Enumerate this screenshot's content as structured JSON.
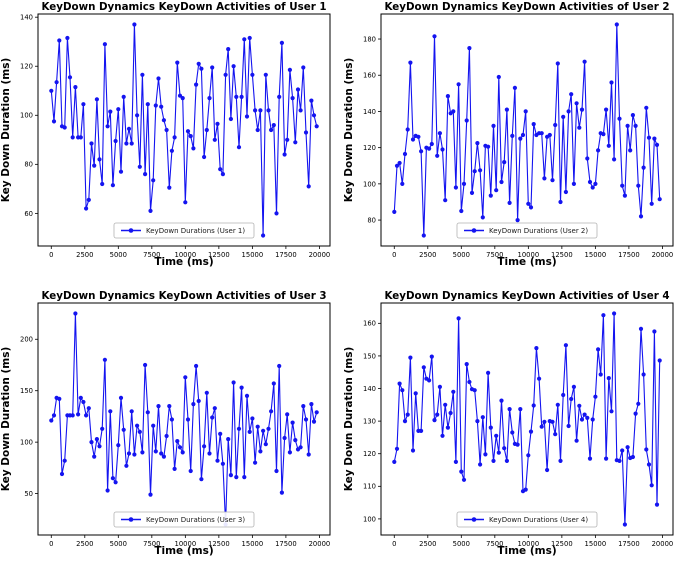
{
  "page": {
    "background_color": "#ffffff",
    "accent_color": "#1414f0"
  },
  "chart_data": [
    {
      "type": "line",
      "title": "KeyDown Dynamics KeyDown Activities of User 1",
      "xlabel": "Time (ms)",
      "ylabel": "Key Down Duration (ms)",
      "legend_label": "KeyDown Durations (User 1)",
      "legend_position": "lower center",
      "line_color": "#1414f0",
      "marker": "circle",
      "grid": false,
      "x_step_ms": 200,
      "xlim": [
        -990,
        20790
      ],
      "xticks": [
        0,
        2500,
        5000,
        7500,
        10000,
        12500,
        15000,
        17500,
        20000
      ],
      "yticks": [
        60,
        80,
        100,
        120,
        140
      ],
      "values": [
        110,
        97.5,
        113.5,
        130.5,
        95.5,
        95,
        131.5,
        115.5,
        91,
        111.5,
        91,
        91,
        104.5,
        62,
        65.5,
        88.5,
        79.5,
        106.5,
        82,
        72,
        129,
        95.5,
        101.5,
        71.5,
        89.5,
        102.5,
        77,
        107.5,
        88.5,
        94.5,
        88.5,
        137,
        100,
        79,
        116.5,
        76,
        104.5,
        61,
        73.5,
        104,
        115,
        103.5,
        98,
        94,
        70.5,
        85.5,
        91,
        121.5,
        108,
        107,
        64.5,
        93.5,
        91.5,
        86.5,
        112.5,
        121,
        119,
        83,
        94,
        107,
        119.5,
        90,
        96.5,
        78,
        76,
        116.5,
        127,
        98.5,
        120,
        107.5,
        87,
        107.5,
        131,
        99.5,
        131.5,
        116.5,
        102,
        94,
        102,
        51,
        116.5,
        102,
        94,
        96,
        60,
        107.5,
        129.5,
        84,
        90,
        118.5,
        107,
        89,
        110.5,
        102,
        119.5,
        93,
        71,
        106,
        100,
        95.5
      ]
    },
    {
      "type": "line",
      "title": "KeyDown Dynamics KeyDown Activities of User 2",
      "xlabel": "Time (ms)",
      "ylabel": "Key Down Duration (ms)",
      "legend_label": "KeyDown Durations (User 2)",
      "legend_position": "lower center",
      "line_color": "#1414f0",
      "marker": "circle",
      "grid": false,
      "x_step_ms": 200,
      "xlim": [
        -990,
        20790
      ],
      "xticks": [
        0,
        2500,
        5000,
        7500,
        10000,
        12500,
        15000,
        17500,
        20000
      ],
      "yticks": [
        80,
        100,
        120,
        140,
        160,
        180
      ],
      "values": [
        84.5,
        110,
        111.5,
        100,
        116.5,
        130,
        167,
        124.5,
        126.5,
        126,
        118,
        71.5,
        120,
        119.5,
        122,
        181.5,
        115.5,
        128,
        119,
        91,
        148.5,
        139,
        140,
        98,
        155,
        85,
        100,
        135,
        175,
        95,
        107,
        122.5,
        107.5,
        81.5,
        121,
        120.5,
        93.5,
        132,
        96.5,
        159,
        101,
        112,
        141,
        89.5,
        126.5,
        153,
        80,
        125,
        127,
        140,
        89,
        87,
        133,
        127,
        128,
        128,
        103,
        126,
        127,
        102,
        132.5,
        166.5,
        90,
        137,
        95.5,
        140,
        149.5,
        100,
        144.5,
        131,
        141,
        167.5,
        114,
        101,
        98,
        100,
        118.5,
        128,
        127.5,
        141,
        121,
        156,
        113.5,
        188,
        136,
        99,
        93.5,
        132,
        118.5,
        138,
        132,
        99,
        82,
        109,
        142,
        125.5,
        89,
        125,
        121.5,
        91.5
      ]
    },
    {
      "type": "line",
      "title": "KeyDown Dynamics KeyDown Activities of User 3",
      "xlabel": "Time (ms)",
      "ylabel": "Key Down Duration (ms)",
      "legend_label": "KeyDown Durations (User 3)",
      "legend_position": "lower center",
      "line_color": "#1414f0",
      "marker": "circle",
      "grid": false,
      "x_step_ms": 200,
      "xlim": [
        -990,
        20790
      ],
      "xticks": [
        0,
        2500,
        5000,
        7500,
        10000,
        12500,
        15000,
        17500,
        20000
      ],
      "yticks": [
        50,
        100,
        150,
        200
      ],
      "values": [
        121,
        126,
        143,
        142,
        69,
        82,
        126,
        126,
        126,
        225,
        127,
        143,
        139,
        126,
        133,
        100,
        86,
        103,
        96,
        113,
        180,
        53,
        130,
        65,
        61,
        97,
        143,
        112,
        77,
        89,
        130,
        88,
        116,
        110,
        90,
        175,
        129,
        49,
        116,
        91,
        135,
        89,
        86,
        106,
        135,
        122,
        74,
        101,
        95,
        90,
        163,
        122,
        72,
        137,
        174,
        140,
        64,
        96,
        148,
        89,
        124,
        133,
        82,
        108,
        79,
        20,
        103,
        68,
        158,
        66,
        113,
        153,
        66,
        145,
        110,
        123,
        80,
        115,
        91,
        111,
        98,
        113,
        130,
        157,
        72,
        174,
        51,
        104,
        127,
        90,
        119,
        102,
        93,
        95,
        135,
        122,
        88,
        137,
        120,
        129
      ]
    },
    {
      "type": "line",
      "title": "KeyDown Dynamics KeyDown Activities of User 4",
      "xlabel": "Time (ms)",
      "ylabel": "Key Down Duration (ms)",
      "legend_label": "KeyDown Durations (User 4)",
      "legend_position": "lower center",
      "line_color": "#1414f0",
      "marker": "circle",
      "grid": false,
      "x_step_ms": 200,
      "xlim": [
        -990,
        20790
      ],
      "xticks": [
        0,
        2500,
        5000,
        7500,
        10000,
        12500,
        15000,
        17500,
        20000
      ],
      "yticks": [
        100,
        110,
        120,
        130,
        140,
        150,
        160
      ],
      "values": [
        117.5,
        121.5,
        141.5,
        139.5,
        130,
        132,
        149.5,
        121,
        138.5,
        127,
        127,
        146.5,
        143,
        142.5,
        149.8,
        130.3,
        132,
        140.5,
        125.5,
        135,
        128,
        132.5,
        139,
        117.5,
        161.5,
        114.5,
        112,
        147.5,
        142,
        139.8,
        139.5,
        130,
        116.7,
        131.2,
        119.8,
        144.8,
        128,
        117.8,
        125.5,
        120.3,
        136.3,
        121.7,
        117.8,
        133.7,
        126.5,
        123,
        122.8,
        133.7,
        108.5,
        109,
        119.5,
        126.8,
        134.8,
        152.4,
        143,
        128.3,
        129.8,
        115,
        130,
        129.8,
        126,
        135,
        117.8,
        138,
        153.3,
        128.5,
        136.8,
        140.5,
        124,
        134.7,
        130.5,
        132,
        131,
        118.5,
        130.5,
        137.5,
        152,
        144.3,
        162.5,
        118.5,
        143.2,
        133,
        163,
        118,
        117.8,
        121,
        98.3,
        122,
        118.7,
        119,
        132.3,
        135.3,
        158.3,
        144.3,
        121.3,
        116.7,
        110.3,
        157.5,
        104.4,
        148.6
      ]
    }
  ]
}
